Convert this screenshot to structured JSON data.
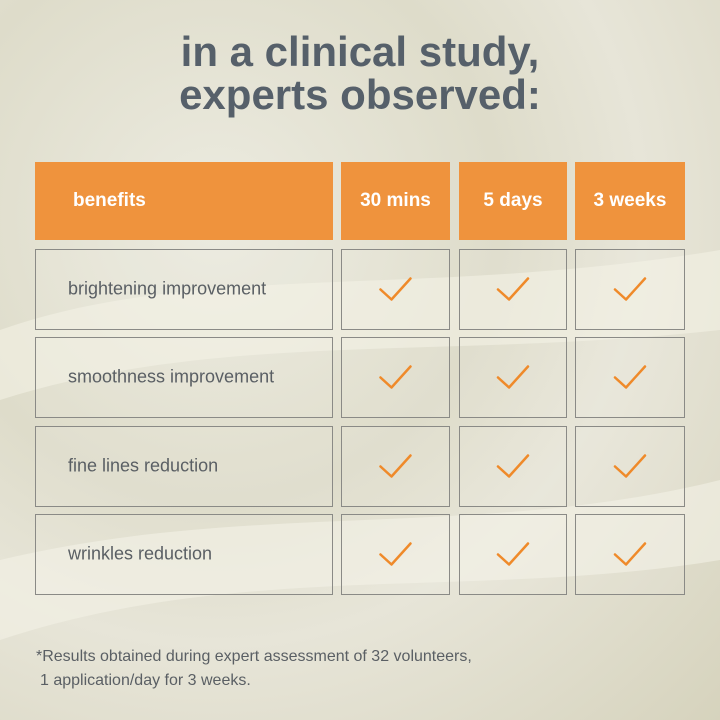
{
  "title": [
    "in a clinical study,",
    "experts observed:"
  ],
  "table": {
    "header": [
      "benefits",
      "30 mins",
      "5 days",
      "3 weeks"
    ],
    "rows": [
      "brightening improvement",
      "smoothness improvement",
      "fine lines reduction",
      "wrinkles reduction"
    ]
  },
  "footnote": [
    "*Results obtained during expert assessment of 32 volunteers,",
    "1 application/day for 3 weeks."
  ]
}
